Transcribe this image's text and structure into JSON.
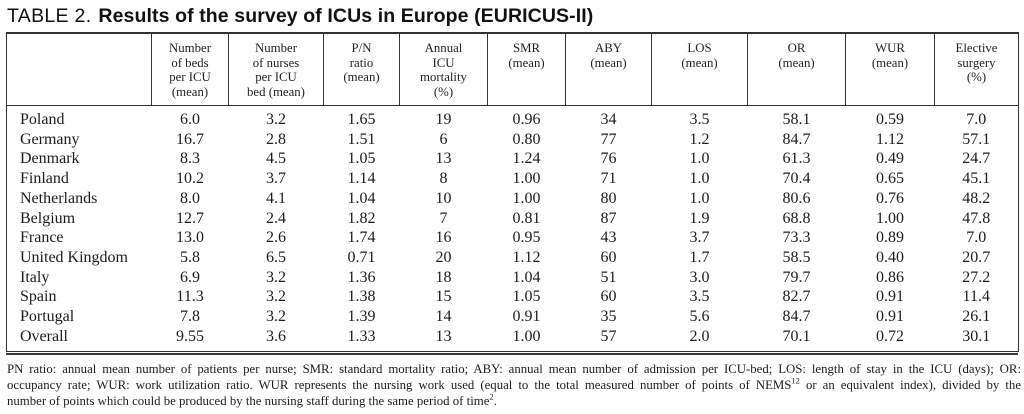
{
  "title": {
    "label": "TABLE 2.",
    "text": "Results of the survey of ICUs in Europe (EURICUS-II)"
  },
  "table": {
    "columns": [
      "",
      "Number\nof beds\nper ICU\n(mean)",
      "Number\nof nurses\nper ICU\nbed (mean)",
      "P/N\nratio\n(mean)",
      "Annual\nICU\nmortality\n(%)",
      "SMR\n(mean)",
      "ABY\n(mean)",
      "LOS\n(mean)",
      "OR\n(mean)",
      "WUR\n(mean)",
      "Elective\nsurgery\n(%)"
    ],
    "rows": [
      [
        "Poland",
        "6.0",
        "3.2",
        "1.65",
        "19",
        "0.96",
        "34",
        "3.5",
        "58.1",
        "0.59",
        "7.0"
      ],
      [
        "Germany",
        "16.7",
        "2.8",
        "1.51",
        "6",
        "0.80",
        "77",
        "1.2",
        "84.7",
        "1.12",
        "57.1"
      ],
      [
        "Denmark",
        "8.3",
        "4.5",
        "1.05",
        "13",
        "1.24",
        "76",
        "1.0",
        "61.3",
        "0.49",
        "24.7"
      ],
      [
        "Finland",
        "10.2",
        "3.7",
        "1.14",
        "8",
        "1.00",
        "71",
        "1.0",
        "70.4",
        "0.65",
        "45.1"
      ],
      [
        "Netherlands",
        "8.0",
        "4.1",
        "1.04",
        "10",
        "1.00",
        "80",
        "1.0",
        "80.6",
        "0.76",
        "48.2"
      ],
      [
        "Belgium",
        "12.7",
        "2.4",
        "1.82",
        "7",
        "0.81",
        "87",
        "1.9",
        "68.8",
        "1.00",
        "47.8"
      ],
      [
        "France",
        "13.0",
        "2.6",
        "1.74",
        "16",
        "0.95",
        "43",
        "3.7",
        "73.3",
        "0.89",
        "7.0"
      ],
      [
        "United Kingdom",
        "5.8",
        "6.5",
        "0.71",
        "20",
        "1.12",
        "60",
        "1.7",
        "58.5",
        "0.40",
        "20.7"
      ],
      [
        "Italy",
        "6.9",
        "3.2",
        "1.36",
        "18",
        "1.04",
        "51",
        "3.0",
        "79.7",
        "0.86",
        "27.2"
      ],
      [
        "Spain",
        "11.3",
        "3.2",
        "1.38",
        "15",
        "1.05",
        "60",
        "3.5",
        "82.7",
        "0.91",
        "11.4"
      ],
      [
        "Portugal",
        "7.8",
        "3.2",
        "1.39",
        "14",
        "0.91",
        "35",
        "5.6",
        "84.7",
        "0.91",
        "26.1"
      ],
      [
        "Overall",
        "9.55",
        "3.6",
        "1.33",
        "13",
        "1.00",
        "57",
        "2.0",
        "70.1",
        "0.72",
        "30.1"
      ]
    ]
  },
  "footnote": {
    "line1": "PN ratio: annual mean number of patients per nurse; SMR: standard mortality ratio; ABY: annual mean number of admission per ICU-bed; LOS: length of stay in the ICU (days); OR:",
    "line2_pre": "occupancy rate; WUR: work utilization ratio. WUR represents the nursing work used (equal to the total measured number of points of NEMS",
    "line2_sup": "12",
    "line2_post": " or an equivalent index), divided by the",
    "line3_pre": "number of points which could be produced by the nursing staff during the same period of time",
    "line3_sup": "2",
    "line3_post": "."
  }
}
